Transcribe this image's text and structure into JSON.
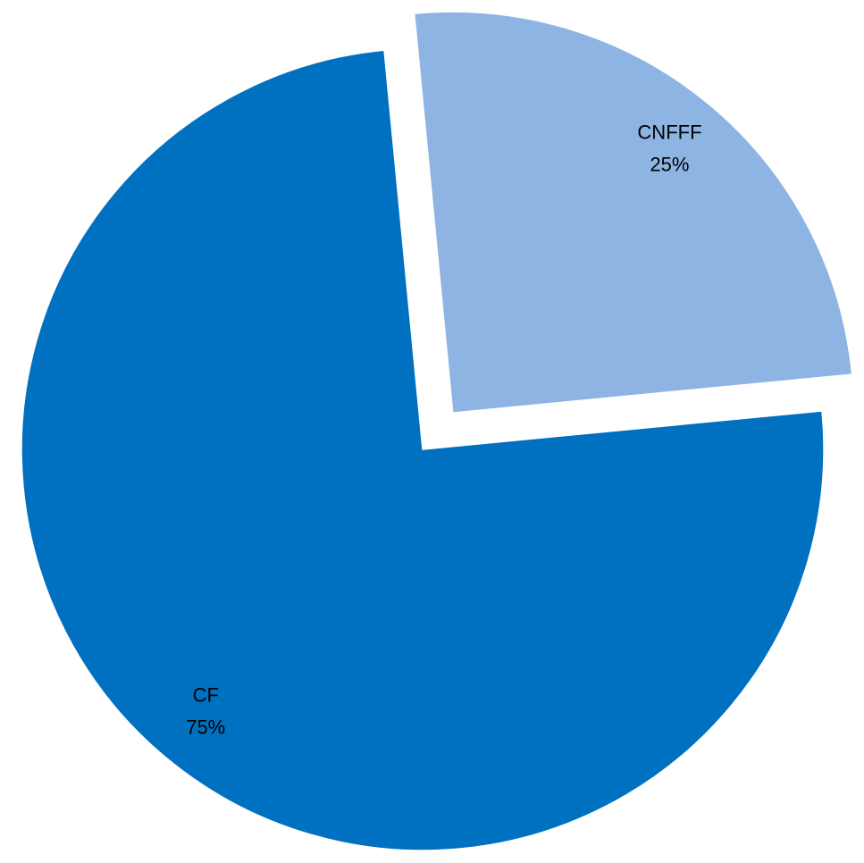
{
  "chart_data": {
    "type": "pie",
    "categories": [
      "CNFFF",
      "CF"
    ],
    "values": [
      25,
      75
    ],
    "value_labels": [
      "25%",
      "75%"
    ],
    "colors": [
      "#8eb4e3",
      "#0070c0"
    ]
  }
}
